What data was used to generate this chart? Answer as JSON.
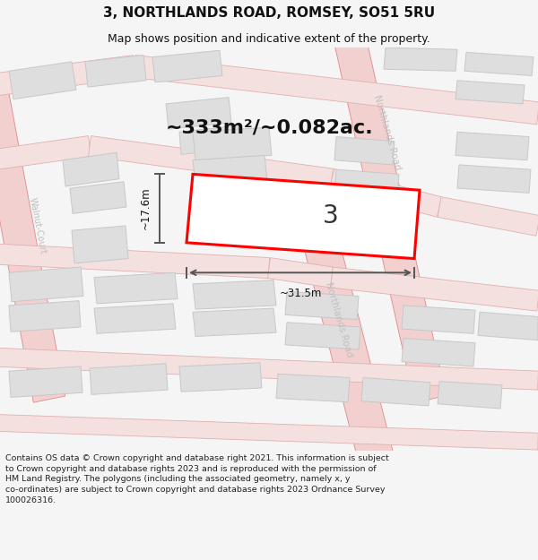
{
  "title": "3, NORTHLANDS ROAD, ROMSEY, SO51 5RU",
  "subtitle": "Map shows position and indicative extent of the property.",
  "area_text": "~333m²/~0.082ac.",
  "width_label": "~31.5m",
  "height_label": "~17.6m",
  "plot_number": "3",
  "footer": "Contains OS data © Crown copyright and database right 2021. This information is subject to Crown copyright and database rights 2023 and is reproduced with the permission of HM Land Registry. The polygons (including the associated geometry, namely x, y co-ordinates) are subject to Crown copyright and database rights 2023 Ordnance Survey 100026316.",
  "bg_color": "#f5f5f5",
  "map_bg": "#ffffff",
  "road_fill": "#f2d0d0",
  "road_edge": "#e08888",
  "road_line_only": "#e8b0b0",
  "building_fill": "#dedede",
  "building_edge": "#c8c8c8",
  "plot_color": "#ff0000",
  "dim_color": "#555555",
  "road_label_color": "#c0c0c0",
  "figsize": [
    6.0,
    6.25
  ],
  "dpi": 100,
  "title_fontsize": 11,
  "subtitle_fontsize": 9,
  "footer_fontsize": 6.8
}
